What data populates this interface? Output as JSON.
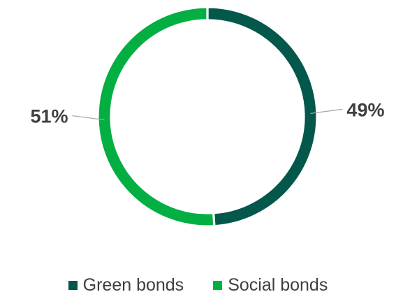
{
  "chart_data": {
    "type": "pie",
    "donut": true,
    "start": "top",
    "direction": "clockwise",
    "categories": [
      "Green bonds",
      "Social bonds"
    ],
    "values": [
      49,
      51
    ],
    "data_labels": [
      "49%",
      "51%"
    ],
    "colors": [
      "#03574b",
      "#03af42"
    ],
    "legend_position": "bottom",
    "title": "",
    "xlabel": "",
    "ylabel": ""
  }
}
